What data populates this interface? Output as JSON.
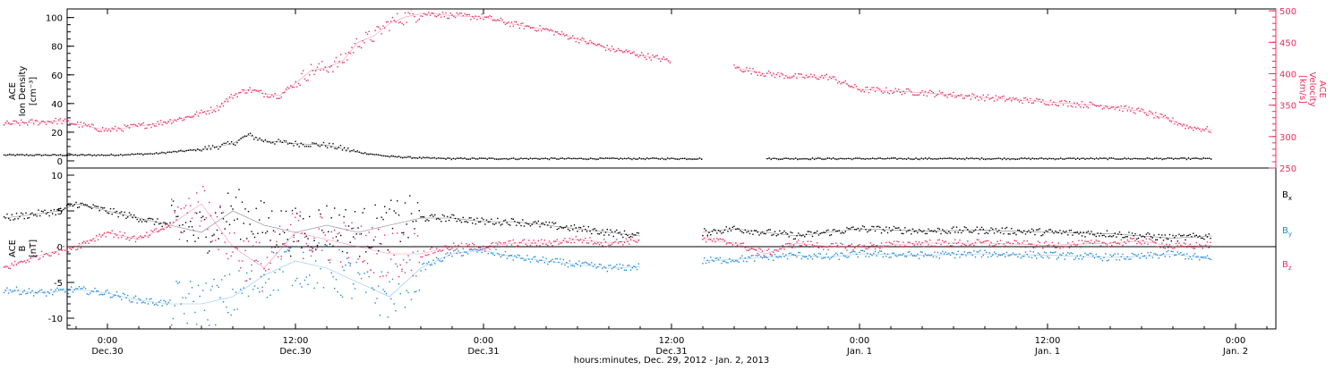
{
  "colors": {
    "black": "#000000",
    "pink": "#e8305f",
    "blue": "#1f87d9",
    "axis": "#000000"
  },
  "xaxis": {
    "title": "hours:minutes, Dec. 29, 2012 - Jan. 2, 2013",
    "range_hours": [
      -6.6,
      55.7
    ],
    "ticks": [
      {
        "h": 0,
        "time": "0:00",
        "date": "Dec.30"
      },
      {
        "h": 12,
        "time": "12:00",
        "date": "Dec.30"
      },
      {
        "h": 24,
        "time": "0:00",
        "date": "Dec.31"
      },
      {
        "h": 36,
        "time": "12:00",
        "date": "Dec.31"
      },
      {
        "h": 48,
        "time": "0:00",
        "date": "Jan. 1"
      },
      {
        "h": 60,
        "time": "12:00",
        "date": "Jan. 1"
      },
      {
        "h": 72,
        "time": "0:00",
        "date": "Jan. 2"
      }
    ]
  },
  "chart_data": [
    {
      "type": "scatter",
      "title": "",
      "ylabel_left": [
        "ACE",
        "Ion Density",
        "[cm⁻³]"
      ],
      "ylabel_right": [
        "ACE",
        "Velocity",
        "[km/s]"
      ],
      "ylim_left": [
        -5,
        106
      ],
      "ylim_right": [
        250,
        503
      ],
      "left_ticks": [
        0,
        20,
        40,
        60,
        80,
        100
      ],
      "right_ticks": [
        250,
        300,
        350,
        400,
        450,
        500
      ],
      "x_range_hours": [
        -6.6,
        55.7
      ],
      "series": [
        {
          "name": "Ion Density",
          "axis": "left",
          "color": "black",
          "x": [
            -6.6,
            -3,
            0,
            3,
            6,
            8,
            9,
            10,
            12,
            14,
            16,
            18,
            20,
            22,
            24,
            30,
            34,
            38,
            40,
            42,
            44,
            48,
            52,
            56,
            60,
            64,
            68,
            70.5
          ],
          "values": [
            4,
            4,
            4,
            5,
            8,
            12,
            18,
            14,
            12,
            11,
            6,
            3,
            2,
            1.5,
            1.5,
            1.5,
            1.5,
            1.5,
            null,
            1.5,
            1.5,
            1.5,
            1.5,
            1.5,
            1.5,
            1.5,
            1.5,
            1.5
          ]
        },
        {
          "name": "Velocity",
          "axis": "right",
          "color": "pink",
          "x": [
            -6.6,
            -3,
            0,
            3,
            5,
            7,
            8,
            9,
            10,
            11,
            12,
            13,
            14,
            15,
            16,
            17,
            18,
            19,
            20,
            21,
            22,
            24,
            26,
            28,
            30,
            32,
            34,
            36,
            38,
            40,
            42,
            44,
            46,
            48,
            52,
            56,
            60,
            64,
            66,
            68,
            69,
            70.5
          ],
          "values": [
            320,
            325,
            310,
            320,
            330,
            345,
            365,
            375,
            368,
            365,
            385,
            405,
            410,
            420,
            450,
            460,
            480,
            490,
            495,
            495,
            492,
            490,
            478,
            470,
            455,
            440,
            430,
            420,
            null,
            410,
            400,
            395,
            395,
            375,
            370,
            362,
            355,
            348,
            340,
            325,
            315,
            310
          ]
        }
      ]
    },
    {
      "type": "scatter",
      "title": "",
      "ylabel_left": [
        "ACE",
        "B",
        "[nT]"
      ],
      "ylim": [
        -11.5,
        11
      ],
      "ticks": [
        -10,
        -5,
        0,
        5,
        10
      ],
      "zero_line": true,
      "x_range_hours": [
        -6.6,
        55.7
      ],
      "legend": [
        {
          "label": "B",
          "sub": "x",
          "color": "black"
        },
        {
          "label": "B",
          "sub": "y",
          "color": "blue"
        },
        {
          "label": "B",
          "sub": "z",
          "color": "pink"
        }
      ],
      "series": [
        {
          "name": "Bx",
          "color": "black",
          "x": [
            -6.6,
            -3,
            -2,
            0,
            2,
            4,
            6,
            8,
            10,
            12,
            14,
            16,
            18,
            20,
            22,
            24,
            26,
            28,
            30,
            32,
            34,
            36,
            38,
            40,
            42,
            44,
            46,
            48,
            52,
            56,
            60,
            64,
            66,
            68,
            70.5
          ],
          "values": [
            4,
            5,
            6,
            5,
            4,
            3,
            2,
            5,
            3,
            2,
            3,
            2,
            3,
            4,
            4,
            3.5,
            3.5,
            3,
            2.5,
            2,
            1.5,
            null,
            2,
            2.5,
            2,
            1.5,
            2,
            2.5,
            2.2,
            2.3,
            2,
            1.8,
            1.5,
            1.2,
            1.5
          ]
        },
        {
          "name": "By",
          "color": "blue",
          "x": [
            -6.6,
            -4,
            -2,
            0,
            2,
            4,
            6,
            8,
            10,
            12,
            14,
            16,
            18,
            20,
            22,
            24,
            26,
            28,
            30,
            32,
            34,
            36,
            38,
            40,
            42,
            44,
            46,
            48,
            52,
            56,
            60,
            64,
            66,
            68,
            70.5
          ],
          "values": [
            -6,
            -6.5,
            -6,
            -6.5,
            -7.5,
            -8,
            -8,
            -7,
            -4,
            -2,
            -3,
            -5,
            -7,
            -3,
            -1,
            -0.5,
            -1.5,
            -2,
            -2.5,
            -3,
            -2.8,
            null,
            -2,
            -1.8,
            -1.5,
            -1.2,
            -1.5,
            -1,
            -1.2,
            -1,
            -1.2,
            -1.5,
            -1.4,
            -1,
            -1.8
          ]
        },
        {
          "name": "Bz",
          "color": "pink",
          "x": [
            -6.6,
            -4,
            -2,
            0,
            2,
            4,
            6,
            8,
            10,
            12,
            14,
            16,
            18,
            20,
            22,
            24,
            26,
            28,
            30,
            32,
            34,
            36,
            38,
            40,
            42,
            44,
            46,
            48,
            52,
            56,
            60,
            64,
            66,
            68,
            70.5
          ],
          "values": [
            -3,
            -1,
            0,
            2,
            1,
            3,
            6,
            0,
            -3,
            2,
            1,
            0,
            -1,
            -1,
            0,
            0,
            0.5,
            0.5,
            1,
            0.5,
            1,
            null,
            1,
            0.5,
            -1,
            0.5,
            0,
            0,
            0.5,
            0.5,
            0.2,
            0.5,
            0.8,
            0,
            0.2
          ]
        }
      ]
    }
  ]
}
